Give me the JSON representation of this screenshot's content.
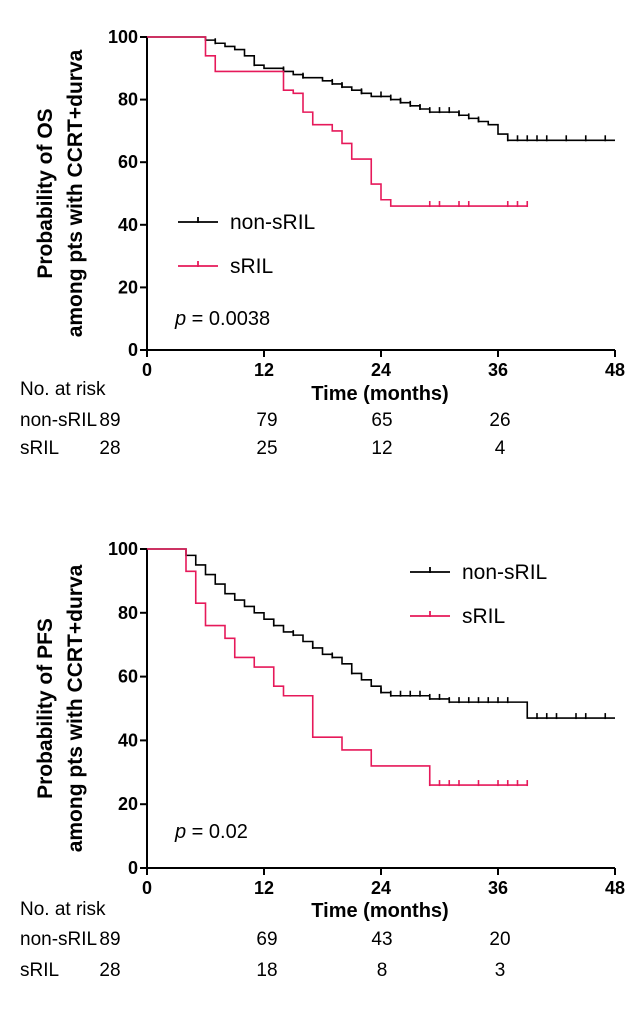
{
  "chart_data": [
    {
      "type": "line",
      "title": "",
      "ylabel": "Probability of OS",
      "ylabel2": "among pts with CCRT+durva",
      "xlabel": "Time (months)",
      "xlim": [
        0,
        48
      ],
      "ylim": [
        0,
        100
      ],
      "xticks": [
        "0",
        "12",
        "24",
        "36",
        "48"
      ],
      "yticks": [
        "0",
        "20",
        "40",
        "60",
        "80",
        "100"
      ],
      "legend_position": "middle-left",
      "annotation_p": "p",
      "annotation_value": " = 0.0038",
      "series": [
        {
          "name": "non-sRIL",
          "color": "#000000",
          "steps": [
            [
              0,
              100
            ],
            [
              5,
              100
            ],
            [
              6,
              99
            ],
            [
              7,
              98
            ],
            [
              8,
              97
            ],
            [
              9,
              96
            ],
            [
              10,
              94
            ],
            [
              11,
              91
            ],
            [
              12,
              90
            ],
            [
              14,
              89
            ],
            [
              15,
              88
            ],
            [
              16,
              87
            ],
            [
              17,
              87
            ],
            [
              18,
              86
            ],
            [
              19,
              85
            ],
            [
              20,
              84
            ],
            [
              21,
              83
            ],
            [
              22,
              82
            ],
            [
              23,
              81
            ],
            [
              24,
              81
            ],
            [
              25,
              80
            ],
            [
              26,
              79
            ],
            [
              27,
              78
            ],
            [
              28,
              77
            ],
            [
              29,
              76
            ],
            [
              30,
              76
            ],
            [
              31,
              76
            ],
            [
              32,
              75
            ],
            [
              33,
              74
            ],
            [
              34,
              73
            ],
            [
              35,
              72
            ],
            [
              36,
              69
            ],
            [
              37,
              67
            ],
            [
              38,
              67
            ],
            [
              48,
              67
            ]
          ],
          "censored": [
            7,
            11,
            14,
            16,
            19,
            20,
            22,
            24,
            25,
            26,
            27,
            28,
            29,
            30,
            31,
            32,
            33,
            34,
            37,
            38,
            39,
            40,
            41,
            43,
            45,
            47
          ]
        },
        {
          "name": "sRIL",
          "color": "#e6195a",
          "steps": [
            [
              0,
              100
            ],
            [
              5,
              100
            ],
            [
              6,
              94
            ],
            [
              7,
              89
            ],
            [
              10,
              89
            ],
            [
              12,
              89
            ],
            [
              14,
              83
            ],
            [
              15,
              82
            ],
            [
              16,
              76
            ],
            [
              17,
              72
            ],
            [
              19,
              70
            ],
            [
              20,
              66
            ],
            [
              21,
              61
            ],
            [
              23,
              53
            ],
            [
              24,
              48
            ],
            [
              25,
              46
            ],
            [
              39,
              46
            ]
          ],
          "censored": [
            29,
            30,
            32,
            33,
            37,
            38,
            39
          ]
        }
      ],
      "risk_table": {
        "heading": "No. at risk",
        "rows": [
          {
            "label": "non-sRIL",
            "values": [
              "89",
              "79",
              "65",
              "26"
            ]
          },
          {
            "label": "sRIL",
            "values": [
              "28",
              "25",
              "12",
              "4"
            ]
          }
        ]
      }
    },
    {
      "type": "line",
      "title": "",
      "ylabel": "Probability of PFS",
      "ylabel2": "among pts with CCRT+durva",
      "xlabel": "Time (months)",
      "xlim": [
        0,
        48
      ],
      "ylim": [
        0,
        100
      ],
      "xticks": [
        "0",
        "12",
        "24",
        "36",
        "48"
      ],
      "yticks": [
        "0",
        "20",
        "40",
        "60",
        "80",
        "100"
      ],
      "legend_position": "top-right",
      "annotation_p": "p",
      "annotation_value": " = 0.02",
      "series": [
        {
          "name": "non-sRIL",
          "color": "#000000",
          "steps": [
            [
              0,
              100
            ],
            [
              3,
              100
            ],
            [
              4,
              98
            ],
            [
              5,
              95
            ],
            [
              6,
              92
            ],
            [
              7,
              89
            ],
            [
              8,
              86
            ],
            [
              9,
              84
            ],
            [
              10,
              82
            ],
            [
              11,
              80
            ],
            [
              12,
              78
            ],
            [
              13,
              76
            ],
            [
              14,
              74
            ],
            [
              15,
              73
            ],
            [
              16,
              71
            ],
            [
              17,
              69
            ],
            [
              18,
              67
            ],
            [
              19,
              66
            ],
            [
              20,
              64
            ],
            [
              21,
              61
            ],
            [
              22,
              59
            ],
            [
              23,
              57
            ],
            [
              24,
              55
            ],
            [
              25,
              54
            ],
            [
              28,
              54
            ],
            [
              29,
              53
            ],
            [
              30,
              53
            ],
            [
              31,
              52
            ],
            [
              38,
              52
            ],
            [
              39,
              47
            ],
            [
              48,
              47
            ]
          ],
          "censored": [
            13,
            15,
            17,
            19,
            21,
            24,
            25,
            26,
            27,
            28,
            29,
            30,
            31,
            32,
            33,
            34,
            35,
            36,
            37,
            40,
            41,
            42,
            44,
            45,
            47
          ]
        },
        {
          "name": "sRIL",
          "color": "#e6195a",
          "steps": [
            [
              0,
              100
            ],
            [
              3,
              100
            ],
            [
              4,
              93
            ],
            [
              5,
              83
            ],
            [
              6,
              76
            ],
            [
              8,
              72
            ],
            [
              9,
              66
            ],
            [
              11,
              63
            ],
            [
              13,
              57
            ],
            [
              14,
              54
            ],
            [
              16,
              54
            ],
            [
              17,
              41
            ],
            [
              20,
              37
            ],
            [
              23,
              32
            ],
            [
              29,
              26
            ],
            [
              39,
              26
            ]
          ],
          "censored": [
            29,
            30,
            31,
            32,
            34,
            36,
            37,
            38,
            39
          ]
        }
      ],
      "risk_table": {
        "heading": "No. at risk",
        "rows": [
          {
            "label": "non-sRIL",
            "values": [
              "89",
              "69",
              "43",
              "20"
            ]
          },
          {
            "label": "sRIL",
            "values": [
              "28",
              "18",
              "8",
              "3"
            ]
          }
        ]
      }
    }
  ]
}
